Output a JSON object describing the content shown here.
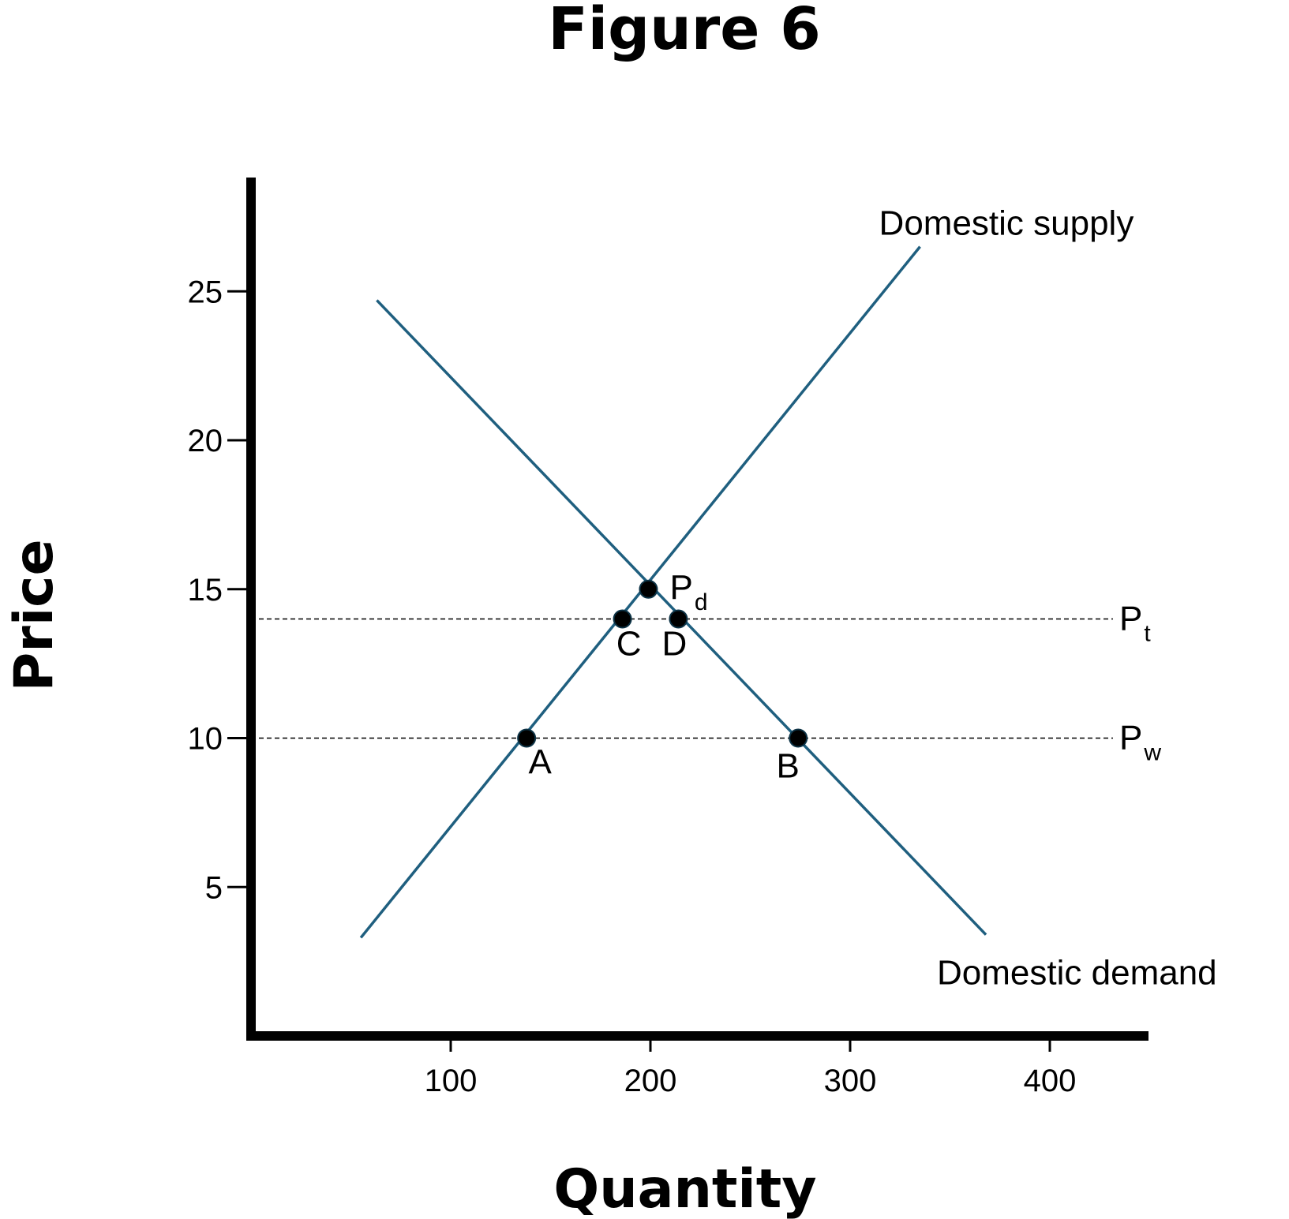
{
  "chart_data": {
    "type": "line",
    "title": "Figure 6",
    "xlabel": "Quantity",
    "ylabel": "Price",
    "xlim": [
      0,
      450
    ],
    "ylim": [
      0,
      29
    ],
    "x_ticks": [
      100,
      200,
      300,
      400
    ],
    "y_ticks": [
      5,
      10,
      15,
      20,
      25
    ],
    "grid": false,
    "colors": {
      "curve": "#1f5f7f",
      "axis": "#000000",
      "point": "#000000"
    },
    "series": [
      {
        "name": "Domestic supply",
        "points": [
          [
            55,
            3.3
          ],
          [
            335,
            26.5
          ]
        ]
      },
      {
        "name": "Domestic demand",
        "points": [
          [
            63,
            24.7
          ],
          [
            368,
            3.4
          ]
        ]
      }
    ],
    "reference_lines": [
      {
        "name": "P",
        "subscript": "t",
        "y": 14,
        "style": "dashed"
      },
      {
        "name": "P",
        "subscript": "w",
        "y": 10,
        "style": "dashed"
      }
    ],
    "points": [
      {
        "name": "P",
        "subscript": "d",
        "x": 199,
        "y": 15
      },
      {
        "name": "C",
        "subscript": "",
        "x": 186,
        "y": 14
      },
      {
        "name": "D",
        "subscript": "",
        "x": 214,
        "y": 14
      },
      {
        "name": "A",
        "subscript": "",
        "x": 138,
        "y": 10
      },
      {
        "name": "B",
        "subscript": "",
        "x": 274,
        "y": 10
      }
    ]
  }
}
